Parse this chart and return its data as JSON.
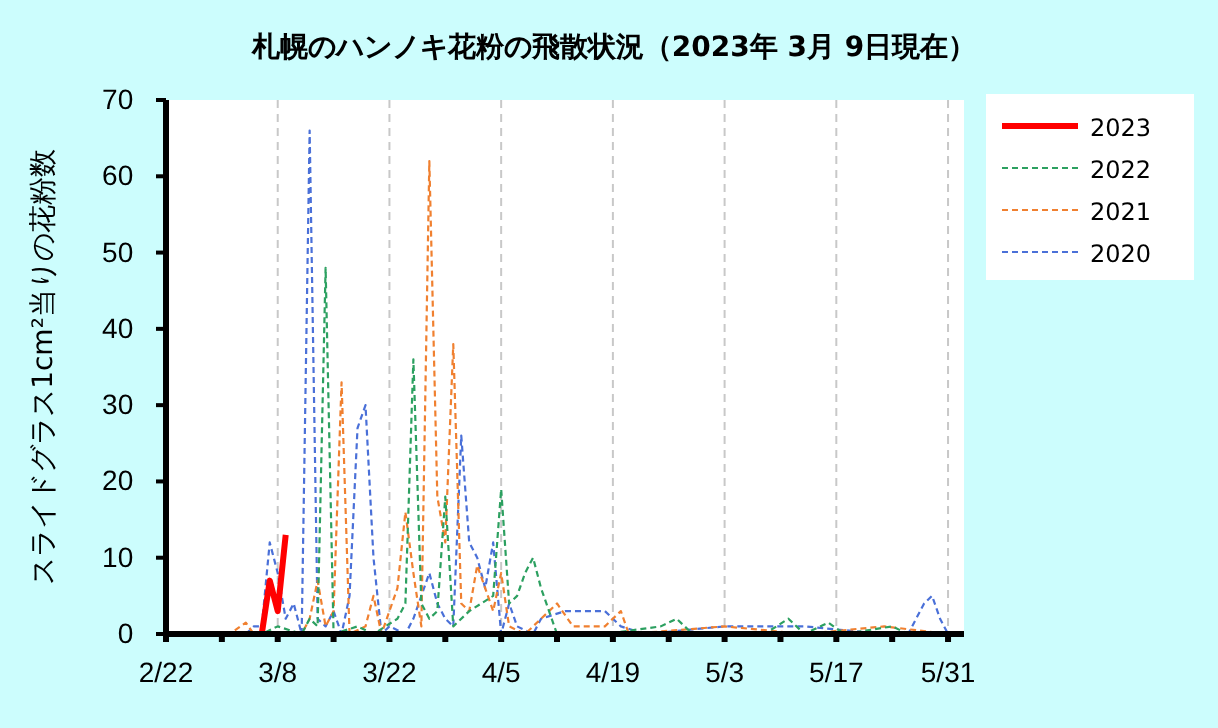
{
  "chart_data": {
    "type": "line",
    "title": "札幌のハンノキ花粉の飛散状況（2023年 3月 9日現在）",
    "ylabel": "スライドグラス1cm²当りの花粉数",
    "xlim": [
      "--02-22",
      "--06-02"
    ],
    "ylim": [
      0,
      70
    ],
    "yticks": [
      0,
      10,
      20,
      30,
      40,
      50,
      60,
      70
    ],
    "xticks": [
      {
        "value": "--02-22",
        "label": "2/22"
      },
      {
        "value": "--03-01",
        "label": null
      },
      {
        "value": "--03-08",
        "label": "3/8"
      },
      {
        "value": "--03-15",
        "label": null
      },
      {
        "value": "--03-22",
        "label": "3/22"
      },
      {
        "value": "--03-29",
        "label": null
      },
      {
        "value": "--04-05",
        "label": "4/5"
      },
      {
        "value": "--04-12",
        "label": null
      },
      {
        "value": "--04-19",
        "label": "4/19"
      },
      {
        "value": "--04-26",
        "label": null
      },
      {
        "value": "--05-03",
        "label": "5/3"
      },
      {
        "value": "--05-10",
        "label": null
      },
      {
        "value": "--05-17",
        "label": "5/17"
      },
      {
        "value": "--05-24",
        "label": null
      },
      {
        "value": "--05-31",
        "label": "5/31"
      }
    ],
    "grid": "x",
    "legend": "right",
    "marker": "none",
    "series": [
      {
        "name": "2023",
        "color": "#ff0000",
        "line_style": "solid",
        "x": [
          "--02-22",
          "--03-06",
          "--03-07",
          "--03-08",
          "--03-09"
        ],
        "values": [
          0,
          0,
          7,
          3,
          13
        ]
      },
      {
        "name": "2022",
        "color": "#2ca060",
        "line_style": "dashed",
        "x": [
          "--02-22",
          "--03-06",
          "--03-08",
          "--03-11",
          "--03-12",
          "--03-13",
          "--03-14",
          "--03-15",
          "--03-18",
          "--03-20",
          "--03-23",
          "--03-24",
          "--03-25",
          "--03-26",
          "--03-27",
          "--03-28",
          "--03-29",
          "--03-30",
          "--04-01",
          "--04-04",
          "--04-05",
          "--04-06",
          "--04-07",
          "--04-08",
          "--04-09",
          "--04-10",
          "--04-12",
          "--04-18",
          "--04-25",
          "--04-27",
          "--04-29",
          "--05-08",
          "--05-11",
          "--05-13",
          "--05-16",
          "--05-18",
          "--05-24",
          "--05-26",
          "--05-31"
        ],
        "values": [
          0,
          0,
          1,
          0,
          2,
          1,
          48,
          0,
          1,
          0,
          2,
          4,
          36,
          4,
          2,
          3,
          18,
          1,
          3,
          5,
          19,
          4,
          5,
          8,
          10,
          6,
          0,
          0,
          1,
          2,
          0,
          0,
          2,
          0,
          1.5,
          0,
          1,
          0,
          0
        ]
      },
      {
        "name": "2021",
        "color": "#f08030",
        "line_style": "dashed",
        "x": [
          "--02-22",
          "--03-02",
          "--03-04",
          "--03-05",
          "--03-11",
          "--03-12",
          "--03-13",
          "--03-14",
          "--03-15",
          "--03-16",
          "--03-17",
          "--03-19",
          "--03-20",
          "--03-21",
          "--03-23",
          "--03-24",
          "--03-25",
          "--03-26",
          "--03-27",
          "--03-28",
          "--03-29",
          "--03-30",
          "--03-31",
          "--04-01",
          "--04-02",
          "--04-04",
          "--04-05",
          "--04-06",
          "--04-08",
          "--04-10",
          "--04-12",
          "--04-14",
          "--04-18",
          "--04-20",
          "--04-21",
          "--05-03",
          "--05-13",
          "--05-23",
          "--05-31"
        ],
        "values": [
          0,
          0,
          1.5,
          0,
          0,
          2,
          7,
          1,
          3,
          33,
          0,
          1,
          5,
          0,
          6,
          16,
          8,
          1,
          62,
          18,
          12,
          38,
          4,
          3,
          9,
          3,
          8,
          1,
          0,
          2,
          4,
          1,
          1,
          3,
          0,
          1,
          0,
          1,
          0
        ]
      },
      {
        "name": "2020",
        "color": "#4a70d8",
        "line_style": "dashed",
        "x": [
          "--02-22",
          "--03-04",
          "--03-05",
          "--03-06",
          "--03-07",
          "--03-08",
          "--03-09",
          "--03-10",
          "--03-11",
          "--03-12",
          "--03-13",
          "--03-14",
          "--03-15",
          "--03-16",
          "--03-17",
          "--03-18",
          "--03-19",
          "--03-20",
          "--03-21",
          "--03-22",
          "--03-24",
          "--03-25",
          "--03-27",
          "--03-28",
          "--03-29",
          "--03-30",
          "--03-31",
          "--04-01",
          "--04-02",
          "--04-03",
          "--04-04",
          "--04-05",
          "--04-06",
          "--04-07",
          "--04-09",
          "--04-10",
          "--04-13",
          "--04-16",
          "--04-18",
          "--04-20",
          "--04-23",
          "--05-03",
          "--05-13",
          "--05-23",
          "--05-26",
          "--05-28",
          "--05-29",
          "--05-30",
          "--05-31"
        ],
        "values": [
          0,
          0,
          1,
          1,
          12,
          8,
          2,
          4,
          0,
          66,
          2,
          1,
          3,
          0,
          5,
          27,
          30,
          10,
          0,
          1,
          0,
          2,
          8,
          4,
          2,
          1,
          26,
          12,
          10,
          6,
          12,
          0,
          4,
          1,
          0,
          2,
          3,
          3,
          3,
          1,
          0,
          1,
          1,
          0,
          0,
          4,
          5,
          2,
          0
        ]
      }
    ]
  }
}
